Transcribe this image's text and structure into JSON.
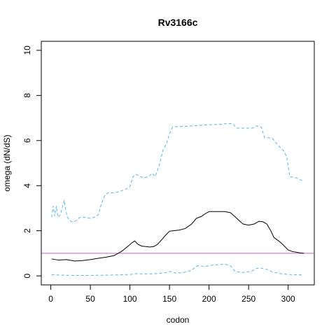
{
  "chart_data": {
    "type": "line",
    "title": "Rv3166c",
    "xlabel": "codon",
    "ylabel": "omega (dN/dS)",
    "xlim": [
      -12,
      333
    ],
    "ylim": [
      -0.4,
      10.4
    ],
    "x_ticks": [
      0,
      50,
      100,
      150,
      200,
      250,
      300
    ],
    "y_ticks": [
      0,
      2,
      4,
      6,
      8,
      10
    ],
    "grid": false,
    "reference_line": {
      "y": 1,
      "color": "#CC66CC"
    },
    "series": [
      {
        "role": "estimate",
        "color": "#000000",
        "dash": "solid",
        "points": [
          [
            1,
            0.75
          ],
          [
            10,
            0.7
          ],
          [
            20,
            0.72
          ],
          [
            30,
            0.66
          ],
          [
            40,
            0.68
          ],
          [
            50,
            0.72
          ],
          [
            60,
            0.78
          ],
          [
            70,
            0.83
          ],
          [
            80,
            0.9
          ],
          [
            85,
            1.0
          ],
          [
            90,
            1.1
          ],
          [
            97,
            1.3
          ],
          [
            102,
            1.45
          ],
          [
            106,
            1.55
          ],
          [
            110,
            1.4
          ],
          [
            115,
            1.32
          ],
          [
            120,
            1.3
          ],
          [
            125,
            1.28
          ],
          [
            130,
            1.3
          ],
          [
            135,
            1.4
          ],
          [
            140,
            1.6
          ],
          [
            145,
            1.8
          ],
          [
            150,
            1.98
          ],
          [
            155,
            2.0
          ],
          [
            162,
            2.03
          ],
          [
            170,
            2.1
          ],
          [
            178,
            2.3
          ],
          [
            184,
            2.55
          ],
          [
            190,
            2.63
          ],
          [
            195,
            2.75
          ],
          [
            200,
            2.85
          ],
          [
            210,
            2.85
          ],
          [
            220,
            2.85
          ],
          [
            227,
            2.8
          ],
          [
            232,
            2.65
          ],
          [
            238,
            2.45
          ],
          [
            243,
            2.3
          ],
          [
            250,
            2.25
          ],
          [
            257,
            2.3
          ],
          [
            263,
            2.42
          ],
          [
            268,
            2.4
          ],
          [
            273,
            2.3
          ],
          [
            278,
            2.0
          ],
          [
            282,
            1.7
          ],
          [
            288,
            1.55
          ],
          [
            293,
            1.4
          ],
          [
            300,
            1.15
          ],
          [
            305,
            1.08
          ],
          [
            310,
            1.05
          ],
          [
            315,
            1.02
          ],
          [
            320,
            1.0
          ]
        ]
      },
      {
        "role": "upper bound",
        "color": "#56B4E9",
        "dash": "dashed",
        "points": [
          [
            1,
            2.6
          ],
          [
            3,
            3.1
          ],
          [
            5,
            2.65
          ],
          [
            7,
            3.1
          ],
          [
            9,
            2.6
          ],
          [
            12,
            2.7
          ],
          [
            15,
            3.1
          ],
          [
            17,
            3.35
          ],
          [
            19,
            2.9
          ],
          [
            21,
            2.6
          ],
          [
            24,
            2.45
          ],
          [
            28,
            2.38
          ],
          [
            32,
            2.45
          ],
          [
            36,
            2.58
          ],
          [
            42,
            2.6
          ],
          [
            50,
            2.55
          ],
          [
            55,
            2.6
          ],
          [
            60,
            2.7
          ],
          [
            64,
            3.2
          ],
          [
            68,
            3.55
          ],
          [
            72,
            3.68
          ],
          [
            80,
            3.68
          ],
          [
            88,
            3.75
          ],
          [
            95,
            3.85
          ],
          [
            100,
            3.95
          ],
          [
            104,
            4.4
          ],
          [
            108,
            4.5
          ],
          [
            113,
            4.4
          ],
          [
            118,
            4.35
          ],
          [
            124,
            4.4
          ],
          [
            128,
            4.55
          ],
          [
            132,
            4.4
          ],
          [
            137,
            4.9
          ],
          [
            142,
            5.6
          ],
          [
            146,
            5.85
          ],
          [
            150,
            6.3
          ],
          [
            154,
            6.6
          ],
          [
            160,
            6.62
          ],
          [
            170,
            6.63
          ],
          [
            180,
            6.65
          ],
          [
            190,
            6.68
          ],
          [
            200,
            6.7
          ],
          [
            215,
            6.72
          ],
          [
            222,
            6.75
          ],
          [
            230,
            6.75
          ],
          [
            235,
            6.55
          ],
          [
            245,
            6.55
          ],
          [
            255,
            6.55
          ],
          [
            260,
            6.65
          ],
          [
            266,
            6.6
          ],
          [
            270,
            6.15
          ],
          [
            280,
            6.1
          ],
          [
            287,
            5.8
          ],
          [
            294,
            5.55
          ],
          [
            298,
            5.3
          ],
          [
            302,
            4.4
          ],
          [
            310,
            4.35
          ],
          [
            316,
            4.25
          ],
          [
            320,
            4.2
          ]
        ]
      },
      {
        "role": "lower bound",
        "color": "#56B4E9",
        "dash": "dashed",
        "points": [
          [
            1,
            0.05
          ],
          [
            15,
            0.03
          ],
          [
            30,
            0.02
          ],
          [
            50,
            0.02
          ],
          [
            70,
            0.03
          ],
          [
            90,
            0.05
          ],
          [
            100,
            0.06
          ],
          [
            108,
            0.1
          ],
          [
            115,
            0.09
          ],
          [
            125,
            0.09
          ],
          [
            135,
            0.1
          ],
          [
            145,
            0.14
          ],
          [
            152,
            0.2
          ],
          [
            158,
            0.12
          ],
          [
            168,
            0.15
          ],
          [
            178,
            0.25
          ],
          [
            185,
            0.45
          ],
          [
            195,
            0.42
          ],
          [
            205,
            0.48
          ],
          [
            213,
            0.5
          ],
          [
            220,
            0.52
          ],
          [
            227,
            0.45
          ],
          [
            233,
            0.2
          ],
          [
            243,
            0.15
          ],
          [
            253,
            0.2
          ],
          [
            260,
            0.33
          ],
          [
            265,
            0.35
          ],
          [
            272,
            0.3
          ],
          [
            280,
            0.18
          ],
          [
            290,
            0.1
          ],
          [
            300,
            0.06
          ],
          [
            310,
            0.05
          ],
          [
            320,
            0.04
          ]
        ]
      }
    ]
  }
}
